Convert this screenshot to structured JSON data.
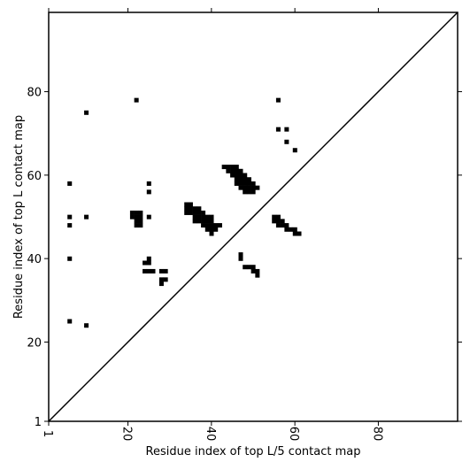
{
  "chart_data": {
    "type": "scatter",
    "title": "",
    "xlabel": "Residue index of top L/5 contact map",
    "ylabel": "Residue index of top L contact map",
    "xlim": [
      1,
      99
    ],
    "ylim": [
      1,
      99
    ],
    "xticks": [
      1,
      20,
      40,
      60,
      80
    ],
    "yticks": [
      1,
      20,
      40,
      60,
      80
    ],
    "grid": false,
    "diagonal": true,
    "colors": {
      "marker": "#000000",
      "diagonal": "#000000",
      "frame": "#000000"
    },
    "lower_triangle_points": [
      [
        38,
        48
      ],
      [
        39,
        48
      ],
      [
        40,
        48
      ],
      [
        41,
        48
      ],
      [
        42,
        48
      ],
      [
        39,
        47
      ],
      [
        40,
        47
      ],
      [
        41,
        47
      ],
      [
        40,
        46
      ],
      [
        55,
        49
      ],
      [
        56,
        49
      ],
      [
        57,
        49
      ],
      [
        55,
        50
      ],
      [
        56,
        50
      ],
      [
        56,
        48
      ],
      [
        57,
        48
      ],
      [
        58,
        48
      ],
      [
        58,
        47
      ],
      [
        59,
        47
      ],
      [
        60,
        47
      ],
      [
        60,
        46
      ],
      [
        61,
        46
      ],
      [
        47,
        41
      ],
      [
        47,
        40
      ],
      [
        48,
        38
      ],
      [
        49,
        38
      ],
      [
        50,
        38
      ],
      [
        50,
        37
      ],
      [
        51,
        37
      ],
      [
        51,
        36
      ]
    ],
    "upper_triangle_points": [
      [
        22,
        78
      ],
      [
        10,
        75
      ],
      [
        6,
        58
      ],
      [
        6,
        50
      ],
      [
        6,
        48
      ],
      [
        6,
        40
      ],
      [
        6,
        25
      ],
      [
        10,
        24
      ],
      [
        10,
        50
      ],
      [
        21,
        51
      ],
      [
        22,
        51
      ],
      [
        23,
        51
      ],
      [
        21,
        50
      ],
      [
        22,
        50
      ],
      [
        23,
        50
      ],
      [
        22,
        49
      ],
      [
        23,
        49
      ],
      [
        22,
        48
      ],
      [
        23,
        48
      ],
      [
        25,
        50
      ],
      [
        25,
        58
      ],
      [
        25,
        56
      ],
      [
        25,
        40
      ],
      [
        24,
        39
      ],
      [
        25,
        39
      ],
      [
        24,
        37
      ],
      [
        25,
        37
      ],
      [
        26,
        37
      ],
      [
        28,
        37
      ],
      [
        29,
        37
      ],
      [
        28,
        35
      ],
      [
        29,
        35
      ],
      [
        28,
        34
      ],
      [
        34,
        53
      ],
      [
        35,
        53
      ],
      [
        34,
        52
      ],
      [
        35,
        52
      ],
      [
        36,
        52
      ],
      [
        37,
        52
      ],
      [
        34,
        51
      ],
      [
        35,
        51
      ],
      [
        36,
        51
      ],
      [
        37,
        51
      ],
      [
        38,
        51
      ],
      [
        36,
        50
      ],
      [
        37,
        50
      ],
      [
        38,
        50
      ],
      [
        39,
        50
      ],
      [
        40,
        50
      ],
      [
        36,
        49
      ],
      [
        37,
        49
      ],
      [
        38,
        49
      ],
      [
        39,
        49
      ],
      [
        40,
        49
      ],
      [
        43,
        62
      ],
      [
        44,
        62
      ],
      [
        45,
        62
      ],
      [
        46,
        62
      ],
      [
        44,
        61
      ],
      [
        45,
        61
      ],
      [
        46,
        61
      ],
      [
        47,
        61
      ],
      [
        45,
        60
      ],
      [
        46,
        60
      ],
      [
        47,
        60
      ],
      [
        48,
        60
      ],
      [
        46,
        59
      ],
      [
        47,
        59
      ],
      [
        48,
        59
      ],
      [
        49,
        59
      ],
      [
        46,
        58
      ],
      [
        47,
        58
      ],
      [
        48,
        58
      ],
      [
        49,
        58
      ],
      [
        50,
        58
      ],
      [
        47,
        57
      ],
      [
        48,
        57
      ],
      [
        49,
        57
      ],
      [
        50,
        57
      ],
      [
        51,
        57
      ],
      [
        48,
        56
      ],
      [
        49,
        56
      ],
      [
        50,
        56
      ],
      [
        56,
        78
      ],
      [
        56,
        71
      ],
      [
        58,
        71
      ],
      [
        58,
        68
      ],
      [
        60,
        66
      ]
    ]
  }
}
